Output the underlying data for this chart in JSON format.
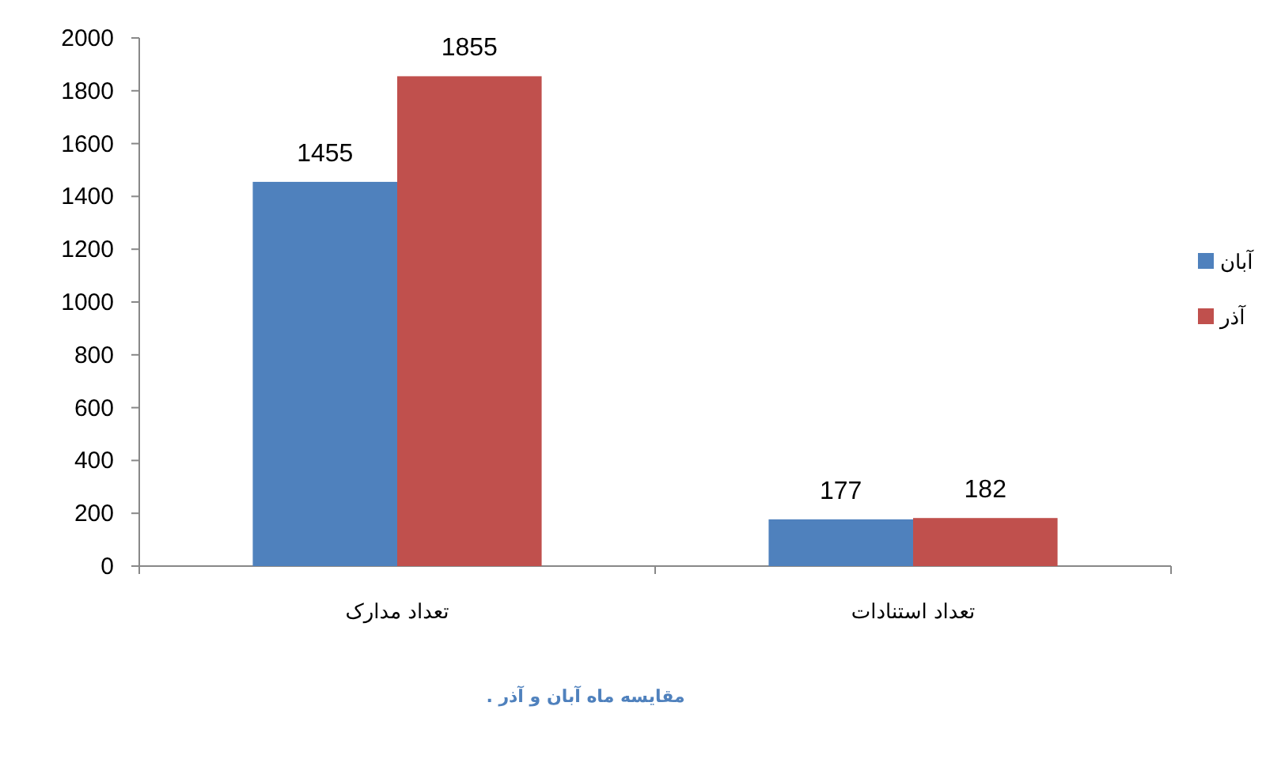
{
  "chart_data": {
    "type": "bar",
    "categories": [
      "تعداد مدارک",
      "تعداد استنادات"
    ],
    "series": [
      {
        "name": "آبان",
        "color": "#4f81bd",
        "values": [
          1455,
          177
        ]
      },
      {
        "name": "آذر",
        "color": "#c0504d",
        "values": [
          1855,
          182
        ]
      }
    ],
    "ylim": [
      0,
      2000
    ],
    "yticks": [
      0,
      200,
      400,
      600,
      800,
      1000,
      1200,
      1400,
      1600,
      1800,
      2000
    ],
    "data_labels": true,
    "legend": "right",
    "grid": false,
    "annotations": [
      "مقایسه ماه آبان و آذر ."
    ]
  }
}
